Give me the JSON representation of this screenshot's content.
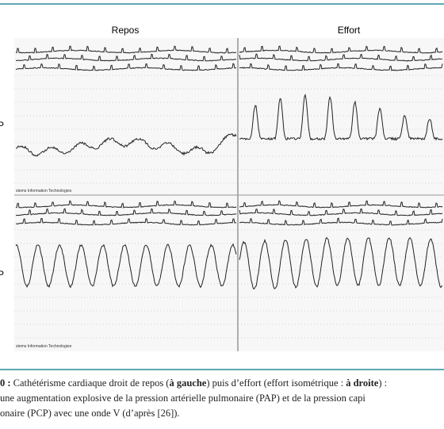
{
  "figure": {
    "headings": [
      "Repos",
      "Effort"
    ],
    "side_labels": [
      "P",
      "P"
    ],
    "footers": [
      "stems Information Technologies",
      "stems Information Technologies"
    ],
    "caption": {
      "number": "0 :",
      "line1": [
        "Cathétérisme cardiaque droit de repos (",
        "à gauche",
        ") puis d’effort (effort isométrique : ",
        "à droite",
        ") :"
      ],
      "line2": "une augmentation explosive de la pression artérielle pulmonaire (PAP) et de la pression capi",
      "line3": "onaire (PCP) avec une onde V (d’après [26])."
    }
  }
}
